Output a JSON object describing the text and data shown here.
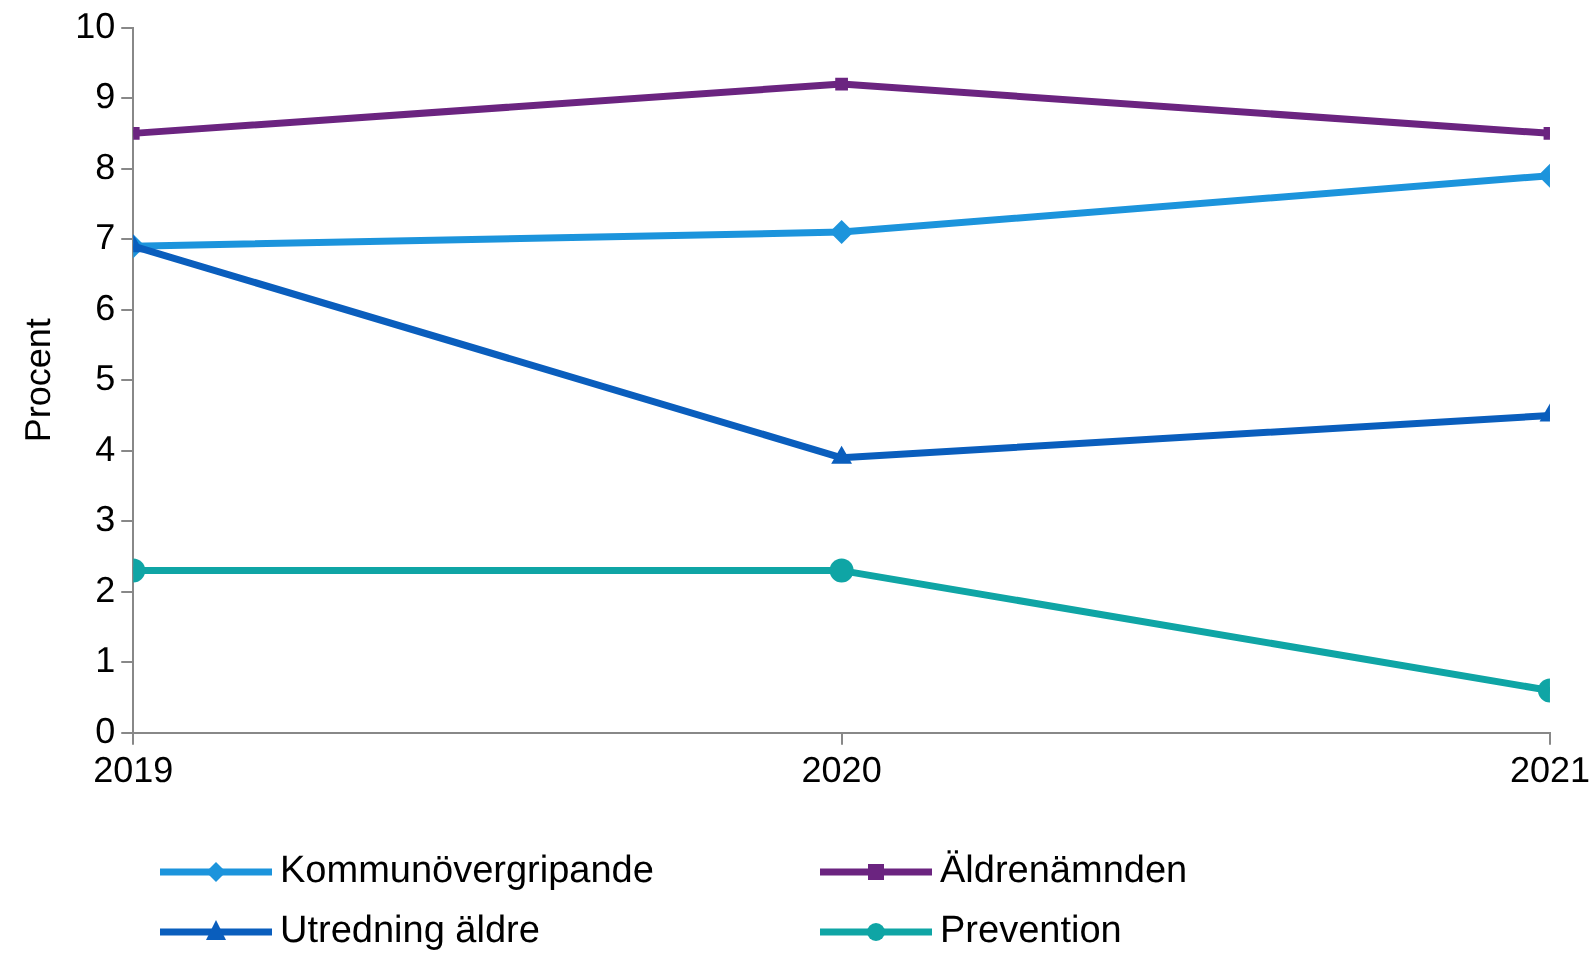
{
  "chart_data": {
    "type": "line",
    "ylabel": "Procent",
    "x": [
      2019,
      2020,
      2021
    ],
    "xlim": [
      2019,
      2021
    ],
    "xticks": [
      2019,
      2020,
      2021
    ],
    "ylim": [
      0,
      10
    ],
    "yticks": [
      0,
      1,
      2,
      3,
      4,
      5,
      6,
      7,
      8,
      9,
      10
    ],
    "grid": false,
    "legend": "bottom",
    "line_style": "solid",
    "series": [
      {
        "name": "Kommunövergripande",
        "color": "#1c94dc",
        "marker": "diamond",
        "values": [
          6.9,
          7.1,
          7.9
        ]
      },
      {
        "name": "Äldrenämnden",
        "color": "#6b2480",
        "marker": "square",
        "values": [
          8.5,
          9.2,
          8.5
        ]
      },
      {
        "name": "Utredning äldre",
        "color": "#0a5ebd",
        "marker": "triangle",
        "values": [
          6.9,
          3.9,
          4.5
        ]
      },
      {
        "name": "Prevention",
        "color": "#0fa5a5",
        "marker": "circle",
        "values": [
          2.3,
          2.3,
          0.6
        ]
      }
    ]
  }
}
